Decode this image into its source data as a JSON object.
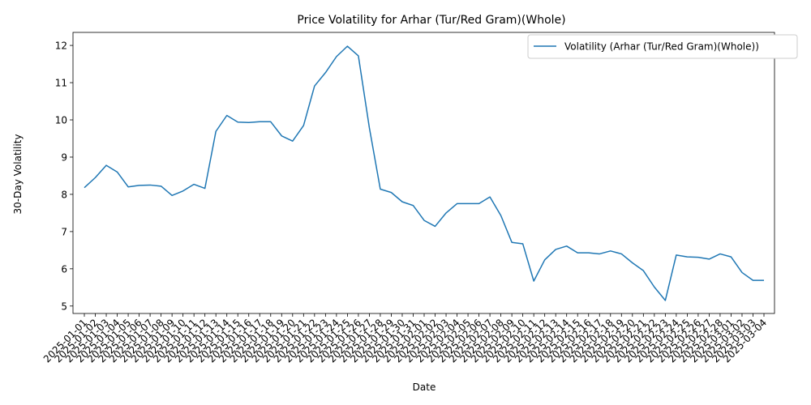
{
  "chart_data": {
    "type": "line",
    "title": "Price Volatility for Arhar (Tur/Red Gram)(Whole)",
    "xlabel": "Date",
    "ylabel": "30-Day Volatility",
    "ylim": [
      4.8,
      12.35
    ],
    "yticks": [
      5,
      6,
      7,
      8,
      9,
      10,
      11,
      12
    ],
    "grid": false,
    "legend_position": "top-right",
    "series_color": "#1f77b4",
    "x": [
      "2025-01-01",
      "2025-01-02",
      "2025-01-03",
      "2025-01-04",
      "2025-01-05",
      "2025-01-06",
      "2025-01-07",
      "2025-01-08",
      "2025-01-09",
      "2025-01-10",
      "2025-01-11",
      "2025-01-12",
      "2025-01-13",
      "2025-01-14",
      "2025-01-15",
      "2025-01-16",
      "2025-01-17",
      "2025-01-18",
      "2025-01-19",
      "2025-01-20",
      "2025-01-21",
      "2025-01-22",
      "2025-01-23",
      "2025-01-24",
      "2025-01-25",
      "2025-01-26",
      "2025-01-27",
      "2025-01-28",
      "2025-01-29",
      "2025-01-30",
      "2025-01-31",
      "2025-02-01",
      "2025-02-02",
      "2025-02-03",
      "2025-02-04",
      "2025-02-05",
      "2025-02-06",
      "2025-02-07",
      "2025-02-08",
      "2025-02-09",
      "2025-02-10",
      "2025-02-11",
      "2025-02-12",
      "2025-02-13",
      "2025-02-14",
      "2025-02-15",
      "2025-02-16",
      "2025-02-17",
      "2025-02-18",
      "2025-02-19",
      "2025-02-20",
      "2025-02-21",
      "2025-02-22",
      "2025-02-23",
      "2025-02-24",
      "2025-02-25",
      "2025-02-26",
      "2025-02-27",
      "2025-02-28",
      "2025-03-01",
      "2025-03-02",
      "2025-03-03",
      "2025-03-04"
    ],
    "series": [
      {
        "name": "Volatility (Arhar (Tur/Red Gram)(Whole))",
        "values": [
          8.18,
          8.45,
          8.78,
          8.6,
          8.2,
          8.24,
          8.25,
          8.22,
          7.97,
          8.09,
          8.27,
          8.16,
          9.69,
          10.12,
          9.94,
          9.93,
          9.95,
          9.95,
          9.57,
          9.43,
          9.85,
          10.91,
          11.27,
          11.7,
          11.98,
          11.72,
          9.79,
          8.14,
          8.05,
          7.8,
          7.7,
          7.3,
          7.14,
          7.5,
          7.75,
          7.75,
          7.75,
          7.93,
          7.43,
          6.71,
          6.67,
          5.67,
          6.24,
          6.52,
          6.61,
          6.43,
          6.43,
          6.4,
          6.48,
          6.4,
          6.16,
          5.95,
          5.51,
          5.15,
          6.37,
          6.32,
          6.31,
          6.26,
          6.4,
          6.32,
          5.9,
          5.69,
          5.69
        ]
      }
    ]
  }
}
